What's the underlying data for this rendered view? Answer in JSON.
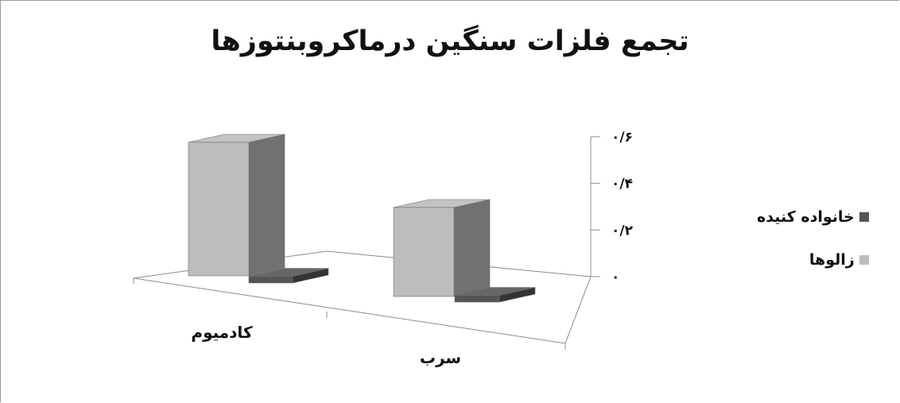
{
  "chart_data": {
    "type": "bar",
    "title": "تجمع فلزات سنگین درماکروبنتوزها",
    "categories": [
      "کادمیوم",
      "سرب"
    ],
    "series": [
      {
        "name": "زالوها",
        "values": [
          0.6,
          0.4
        ],
        "color": "#bdbdbd"
      },
      {
        "name": "خانواده کنیده",
        "values": [
          0.03,
          0.03
        ],
        "color": "#555555"
      }
    ],
    "ylim": [
      0,
      0.6
    ],
    "y_ticks": [
      0,
      0.2,
      0.4,
      0.6
    ],
    "y_tick_labels": [
      "۰",
      "۰/۲",
      "۰/۴",
      "۰/۶"
    ],
    "legend_position": "right",
    "grid": false
  }
}
